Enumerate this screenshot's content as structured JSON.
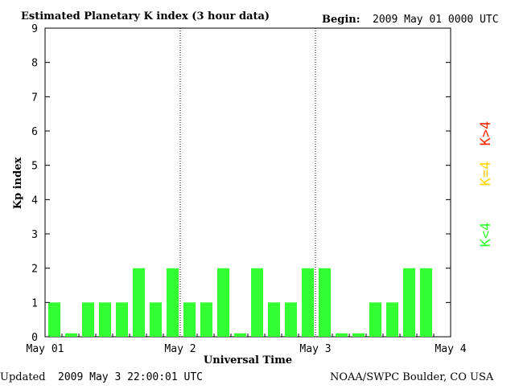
{
  "header": {
    "title": "Estimated Planetary K index (3 hour data)",
    "begin_label": "Begin:",
    "begin_value": "2009 May 01 0000 UTC"
  },
  "footer": {
    "updated_label": "Updated",
    "updated_value": "2009 May  3 22:00:01 UTC",
    "source": "NOAA/SWPC Boulder, CO USA"
  },
  "legend": [
    {
      "label": "K>4",
      "color": "#ff2a00"
    },
    {
      "label": "K=4",
      "color": "#ffd700"
    },
    {
      "label": "K<4",
      "color": "#33ff33"
    }
  ],
  "chart_data": {
    "type": "bar",
    "title": "Estimated Planetary K index (3 hour data)",
    "xlabel": "Universal Time",
    "ylabel": "Kp index",
    "ylim": [
      0,
      9
    ],
    "yticks": [
      "0",
      "1",
      "2",
      "3",
      "4",
      "5",
      "6",
      "7",
      "8",
      "9"
    ],
    "x_tick_labels": [
      "May 01",
      "May 2",
      "May 3",
      "May 4"
    ],
    "day_dividers": [
      "May 2",
      "May 3"
    ],
    "bar_color": "#33ff33",
    "x_range_days": 3,
    "bars_per_day": 8,
    "values": [
      1,
      0.1,
      1,
      1,
      1,
      2,
      1,
      2,
      1,
      1,
      2,
      0.1,
      2,
      1,
      1,
      2,
      2,
      0.1,
      0.1,
      1,
      1,
      2,
      2
    ]
  }
}
